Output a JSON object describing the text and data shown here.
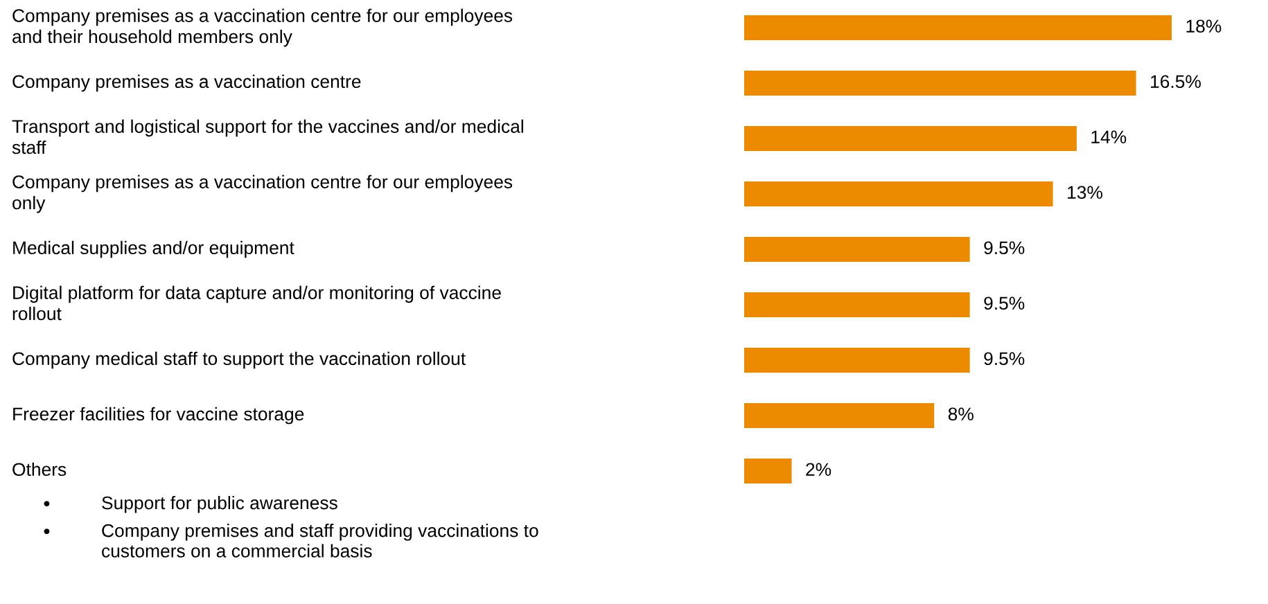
{
  "chart_data": {
    "type": "bar",
    "orientation": "horizontal",
    "categories": [
      "Company premises as a vaccination centre for our employees\nand their household members only",
      "Company premises as a vaccination centre",
      "Transport and logistical support for the vaccines and/or medical\nstaff",
      "Company premises as a vaccination centre for our employees\nonly",
      "Medical supplies and/or equipment",
      "Digital platform for data capture and/or monitoring of vaccine\nrollout",
      "Company medical staff to support the vaccination rollout",
      "Freezer facilities for vaccine storage",
      "Others"
    ],
    "values": [
      18,
      16.5,
      14,
      13,
      9.5,
      9.5,
      9.5,
      8,
      2
    ],
    "value_labels": [
      "18%",
      "16.5%",
      "14%",
      "13%",
      "9.5%",
      "9.5%",
      "9.5%",
      "8%",
      "2%"
    ],
    "color": "#ed8b00",
    "xlim": [
      0,
      18
    ],
    "annotations": [
      "●",
      "Support for public awareness",
      "●",
      "Company premises and staff providing vaccinations to\ncustomers on a commercial basis"
    ]
  }
}
